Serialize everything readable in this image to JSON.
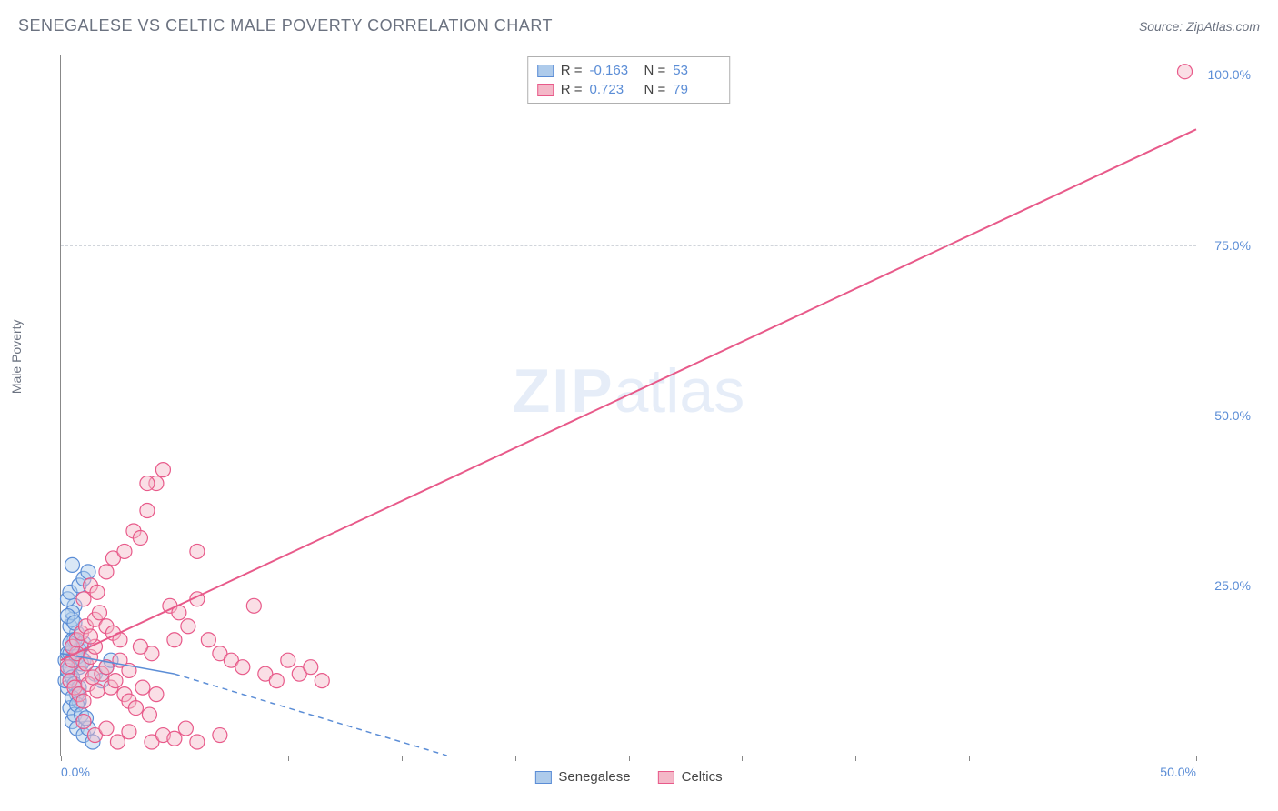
{
  "title": "SENEGALESE VS CELTIC MALE POVERTY CORRELATION CHART",
  "source_label": "Source: ",
  "source_name": "ZipAtlas.com",
  "ylabel": "Male Poverty",
  "watermark_bold": "ZIP",
  "watermark_rest": "atlas",
  "chart": {
    "type": "scatter",
    "xlim": [
      0,
      50
    ],
    "ylim": [
      0,
      103
    ],
    "y_ticks": [
      25,
      50,
      75,
      100
    ],
    "y_tick_labels": [
      "25.0%",
      "50.0%",
      "75.0%",
      "100.0%"
    ],
    "x_ticks": [
      0,
      5,
      10,
      15,
      20,
      25,
      30,
      35,
      40,
      45,
      50
    ],
    "x_tick_labels_shown": {
      "0": "0.0%",
      "50": "50.0%"
    },
    "grid_color": "#d1d5db",
    "axis_color": "#888888",
    "background_color": "#ffffff",
    "tick_label_color": "#5b8dd6",
    "label_color": "#6b7280",
    "series": [
      {
        "name": "Senegalese",
        "fill": "#aecbeb",
        "stroke": "#5b8dd6",
        "fill_opacity": 0.45,
        "marker_radius": 8,
        "R": "-0.163",
        "N": "53",
        "regression": {
          "x1": 0,
          "y1": 15,
          "x2": 17,
          "y2": 0,
          "dashed": true,
          "width": 1.5,
          "solid_part": {
            "x1": 0,
            "y1": 15,
            "x2": 5,
            "y2": 12
          }
        },
        "points": [
          [
            0.2,
            14
          ],
          [
            0.3,
            15
          ],
          [
            0.4,
            12
          ],
          [
            0.5,
            17
          ],
          [
            0.6,
            15
          ],
          [
            0.7,
            18
          ],
          [
            0.8,
            13
          ],
          [
            0.9,
            16
          ],
          [
            1.0,
            14
          ],
          [
            0.3,
            10
          ],
          [
            0.4,
            7
          ],
          [
            0.5,
            5
          ],
          [
            0.6,
            6
          ],
          [
            0.7,
            4
          ],
          [
            0.8,
            8
          ],
          [
            1.0,
            3
          ],
          [
            1.2,
            4
          ],
          [
            1.4,
            2
          ],
          [
            0.4,
            19
          ],
          [
            0.5,
            20
          ],
          [
            0.6,
            22
          ],
          [
            0.3,
            23
          ],
          [
            0.4,
            24
          ],
          [
            0.5,
            21
          ],
          [
            0.8,
            25
          ],
          [
            1.0,
            26
          ],
          [
            1.2,
            27
          ],
          [
            0.5,
            28
          ],
          [
            0.3,
            20.5
          ],
          [
            0.6,
            19.5
          ],
          [
            0.4,
            15
          ],
          [
            0.5,
            16
          ],
          [
            0.6,
            17
          ],
          [
            0.7,
            14.5
          ],
          [
            0.8,
            15.5
          ],
          [
            0.9,
            13.5
          ],
          [
            1.0,
            16.5
          ],
          [
            0.2,
            11
          ],
          [
            0.3,
            12.5
          ],
          [
            0.4,
            13
          ],
          [
            0.5,
            11.5
          ],
          [
            0.6,
            10.5
          ],
          [
            0.7,
            9
          ],
          [
            0.8,
            10
          ],
          [
            1.5,
            12
          ],
          [
            1.8,
            11
          ],
          [
            2.0,
            13
          ],
          [
            2.2,
            14
          ],
          [
            0.5,
            8.5
          ],
          [
            0.7,
            7.5
          ],
          [
            0.9,
            6
          ],
          [
            1.1,
            5.5
          ],
          [
            0.4,
            16.5
          ]
        ]
      },
      {
        "name": "Celtics",
        "fill": "#f4b8c8",
        "stroke": "#e85a8a",
        "fill_opacity": 0.45,
        "marker_radius": 8,
        "R": "0.723",
        "N": "79",
        "regression": {
          "x1": 0,
          "y1": 14,
          "x2": 50,
          "y2": 92,
          "dashed": false,
          "width": 2
        },
        "points": [
          [
            0.3,
            13
          ],
          [
            0.5,
            14
          ],
          [
            0.7,
            15
          ],
          [
            0.9,
            12
          ],
          [
            1.1,
            13.5
          ],
          [
            1.3,
            14.5
          ],
          [
            1.5,
            16
          ],
          [
            0.4,
            11
          ],
          [
            0.6,
            10
          ],
          [
            0.8,
            9
          ],
          [
            1.0,
            8
          ],
          [
            1.2,
            10.5
          ],
          [
            1.4,
            11.5
          ],
          [
            1.6,
            9.5
          ],
          [
            1.8,
            12
          ],
          [
            2.0,
            13
          ],
          [
            2.2,
            10
          ],
          [
            2.4,
            11
          ],
          [
            2.6,
            14
          ],
          [
            2.8,
            9
          ],
          [
            3.0,
            12.5
          ],
          [
            0.5,
            16
          ],
          [
            0.7,
            17
          ],
          [
            0.9,
            18
          ],
          [
            1.1,
            19
          ],
          [
            1.3,
            17.5
          ],
          [
            1.5,
            20
          ],
          [
            1.7,
            21
          ],
          [
            2.0,
            19
          ],
          [
            2.3,
            18
          ],
          [
            2.6,
            17
          ],
          [
            3.0,
            8
          ],
          [
            3.3,
            7
          ],
          [
            3.6,
            10
          ],
          [
            3.9,
            6
          ],
          [
            4.2,
            9
          ],
          [
            1.0,
            23
          ],
          [
            1.3,
            25
          ],
          [
            1.6,
            24
          ],
          [
            2.0,
            27
          ],
          [
            2.3,
            29
          ],
          [
            2.8,
            30
          ],
          [
            3.2,
            33
          ],
          [
            3.5,
            32
          ],
          [
            3.8,
            36
          ],
          [
            4.2,
            40
          ],
          [
            4.5,
            42
          ],
          [
            3.8,
            40
          ],
          [
            4.8,
            22
          ],
          [
            5.2,
            21
          ],
          [
            5.6,
            19
          ],
          [
            6.0,
            23
          ],
          [
            6.5,
            17
          ],
          [
            7.0,
            15
          ],
          [
            7.5,
            14
          ],
          [
            8.0,
            13
          ],
          [
            8.5,
            22
          ],
          [
            9.0,
            12
          ],
          [
            9.5,
            11
          ],
          [
            10.0,
            14
          ],
          [
            10.5,
            12
          ],
          [
            11.0,
            13
          ],
          [
            11.5,
            11
          ],
          [
            6.0,
            30
          ],
          [
            5.0,
            17
          ],
          [
            4.0,
            15
          ],
          [
            3.5,
            16
          ],
          [
            1.0,
            5
          ],
          [
            1.5,
            3
          ],
          [
            2.0,
            4
          ],
          [
            2.5,
            2
          ],
          [
            3.0,
            3.5
          ],
          [
            4.0,
            2
          ],
          [
            4.5,
            3
          ],
          [
            5.0,
            2.5
          ],
          [
            5.5,
            4
          ],
          [
            6.0,
            2
          ],
          [
            7.0,
            3
          ],
          [
            49.5,
            100.5
          ]
        ]
      }
    ]
  },
  "legend": {
    "items": [
      {
        "label": "Senegalese",
        "fill": "#aecbeb",
        "stroke": "#5b8dd6"
      },
      {
        "label": "Celtics",
        "fill": "#f4b8c8",
        "stroke": "#e85a8a"
      }
    ]
  }
}
